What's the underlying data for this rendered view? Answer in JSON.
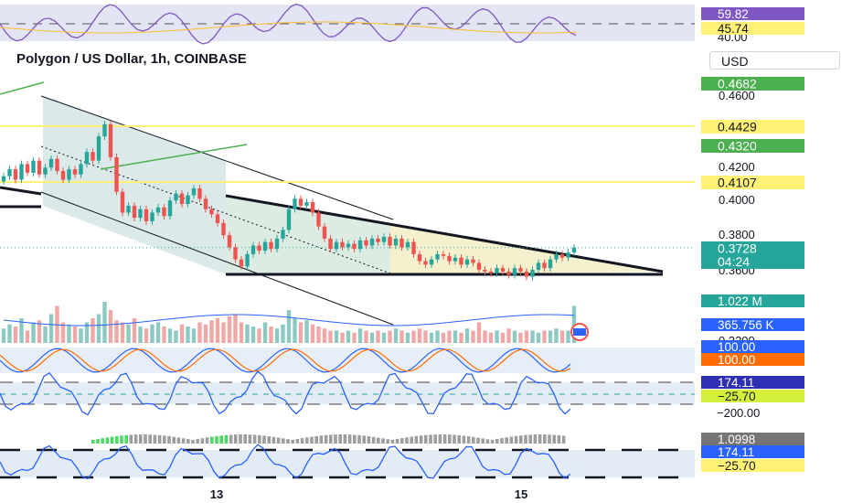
{
  "chart_title": "Polygon / US Dollar, 1h, COINBASE",
  "currency_button": "USD",
  "x_tick_labels": [
    "13",
    "15"
  ],
  "price_tags": [
    {
      "label": "0.4682",
      "value": 0.4682,
      "bg": "#4caf50",
      "fg": "#ffffff"
    },
    {
      "label": "0.4429",
      "value": 0.4429,
      "bg": "#fff176",
      "fg": "#131722"
    },
    {
      "label": "0.4320",
      "value": 0.432,
      "bg": "#4caf50",
      "fg": "#ffffff"
    },
    {
      "label": "0.4107",
      "value": 0.4107,
      "bg": "#fff176",
      "fg": "#131722"
    },
    {
      "label": "0.3728",
      "value": 0.3728,
      "bg": "#26a69a",
      "fg": "#ffffff"
    }
  ],
  "price_ticks": [
    "0.4600",
    "0.4400",
    "0.4200",
    "0.4000",
    "0.3800",
    "0.3600",
    "0.3200"
  ],
  "countdown": "04:24",
  "indicator_tags": {
    "rsi": [
      "59.82",
      "45.74",
      "40.00"
    ],
    "volume": "1.022 M",
    "volume_ma": "365.756 K",
    "stoch": [
      "100.00",
      "100.00"
    ],
    "cci": [
      "174.11",
      "−25.70"
    ],
    "cci_tick": "−200.00",
    "macd_hist": "1.0998",
    "cci2": [
      "174.11",
      "−25.70"
    ]
  },
  "colors": {
    "up": "#26a69a",
    "down": "#ef5350",
    "yellow": "#fff176",
    "green": "#4caf50",
    "blue": "#2962ff",
    "orange": "#ff6d00",
    "purple": "#7e57c2",
    "band": "#e3e4f4"
  },
  "chart_data": [
    {
      "type": "candlestick",
      "title": "Polygon / US Dollar, 1h, COINBASE",
      "ylim": [
        0.31,
        0.48
      ],
      "x_labels": [
        "13",
        "15"
      ],
      "last_price": 0.3728,
      "horizontal_levels": [
        0.4429,
        0.4107
      ],
      "series": [
        {
          "close": [
            0.414,
            0.418,
            0.412,
            0.421,
            0.416,
            0.423,
            0.415,
            0.419,
            0.424,
            0.417,
            0.412,
            0.418,
            0.415,
            0.421,
            0.428,
            0.423,
            0.437,
            0.444,
            0.425,
            0.405,
            0.393,
            0.397,
            0.39,
            0.395,
            0.388,
            0.393,
            0.396,
            0.391,
            0.4,
            0.404,
            0.398,
            0.403,
            0.407,
            0.401,
            0.395,
            0.392,
            0.387,
            0.38,
            0.373,
            0.366,
            0.362,
            0.369,
            0.374,
            0.371,
            0.376,
            0.372,
            0.378,
            0.383,
            0.395,
            0.401,
            0.397,
            0.399,
            0.393,
            0.385,
            0.378,
            0.372,
            0.376,
            0.373,
            0.375,
            0.372,
            0.377,
            0.374,
            0.378,
            0.376,
            0.379,
            0.374,
            0.378,
            0.373,
            0.376,
            0.369,
            0.365,
            0.363,
            0.366,
            0.369,
            0.368,
            0.365,
            0.367,
            0.363,
            0.366,
            0.364,
            0.36,
            0.359,
            0.358,
            0.361,
            0.359,
            0.357,
            0.361,
            0.359,
            0.356,
            0.36,
            0.364,
            0.361,
            0.366,
            0.369,
            0.367,
            0.37,
            0.3728
          ]
        }
      ]
    },
    {
      "type": "bar",
      "title": "Volume",
      "series": [
        {
          "name": "1.022 M",
          "values": [
            0.35,
            0.45,
            0.4,
            0.6,
            0.3,
            0.5,
            0.55,
            0.4,
            0.7,
            0.9,
            0.5,
            0.45,
            0.4,
            0.35,
            0.5,
            0.6,
            0.7,
            1.0,
            0.8,
            0.55,
            0.5,
            0.45,
            0.6,
            0.4,
            0.35,
            0.45,
            0.5,
            0.4,
            0.35,
            0.3,
            0.45,
            0.4,
            0.35,
            0.5,
            0.45,
            0.55,
            0.6,
            0.5,
            0.65,
            0.7,
            0.5,
            0.45,
            0.4,
            0.35,
            0.5,
            0.4,
            0.35,
            0.45,
            0.8,
            0.6,
            0.5,
            0.55,
            0.45,
            0.4,
            0.35,
            0.3,
            0.3,
            0.25,
            0.3,
            0.25,
            0.35,
            0.3,
            0.25,
            0.3,
            0.25,
            0.3,
            0.35,
            0.3,
            0.25,
            0.3,
            0.35,
            0.3,
            0.25,
            0.3,
            0.25,
            0.3,
            0.3,
            0.25,
            0.35,
            0.3,
            0.5,
            0.3,
            0.25,
            0.3,
            0.25,
            0.35,
            0.3,
            0.25,
            0.3,
            0.3,
            0.25,
            0.3,
            0.3,
            0.35,
            0.3,
            0.3,
            0.9
          ]
        }
      ]
    }
  ]
}
